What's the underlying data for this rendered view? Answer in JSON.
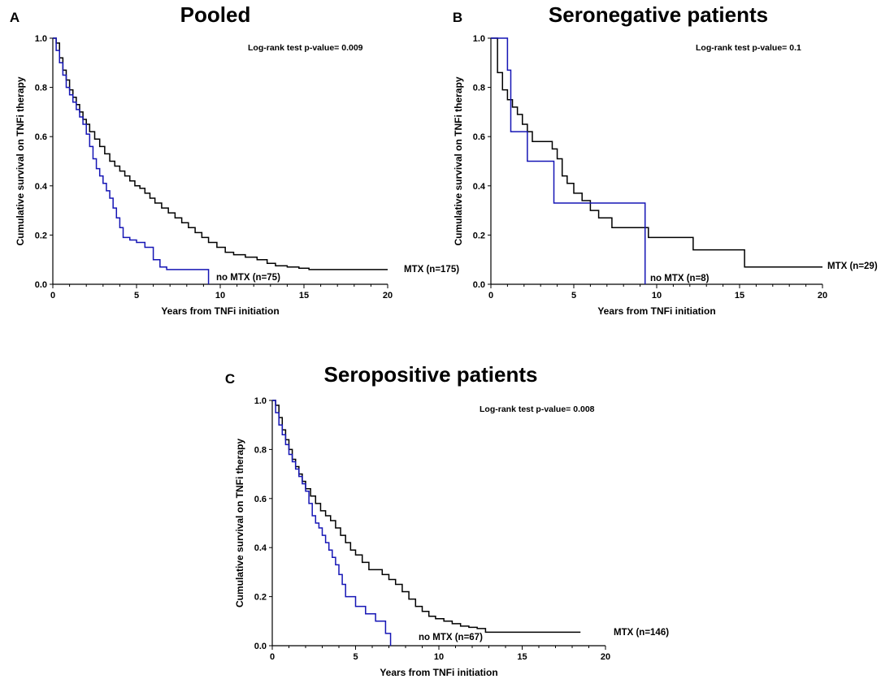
{
  "colors": {
    "axis": "#000000",
    "mtx": "#000000",
    "no_mtx": "#1515b5"
  },
  "chart_data": [
    {
      "panel_label": "A",
      "type": "line",
      "title": "Pooled",
      "xlabel": "Years from TNFi initiation",
      "ylabel": "Cumulative survival on TNFi therapy",
      "xlim": [
        0,
        20
      ],
      "ylim": [
        0,
        1
      ],
      "xticks": [
        "0",
        "5",
        "10",
        "15",
        "20"
      ],
      "yticks": [
        "0.0",
        "0.2",
        "0.4",
        "0.6",
        "0.8",
        "1.0"
      ],
      "annotation": "Log-rank test p-value= 0.009",
      "grid": false,
      "series": [
        {
          "name": "MTX",
          "label": "MTX (n=175)",
          "x": [
            0,
            0.2,
            0.4,
            0.6,
            0.8,
            1.0,
            1.2,
            1.4,
            1.6,
            1.8,
            2.0,
            2.2,
            2.5,
            2.8,
            3.1,
            3.4,
            3.7,
            4.0,
            4.3,
            4.6,
            4.9,
            5.2,
            5.5,
            5.8,
            6.1,
            6.5,
            6.9,
            7.3,
            7.7,
            8.1,
            8.5,
            8.9,
            9.3,
            9.8,
            10.3,
            10.8,
            11.5,
            12.2,
            12.8,
            13.3,
            14.0,
            14.7,
            15.3,
            20.0
          ],
          "y": [
            1.0,
            0.98,
            0.92,
            0.87,
            0.83,
            0.79,
            0.76,
            0.73,
            0.7,
            0.67,
            0.65,
            0.62,
            0.59,
            0.56,
            0.53,
            0.5,
            0.48,
            0.46,
            0.44,
            0.42,
            0.4,
            0.39,
            0.37,
            0.35,
            0.33,
            0.31,
            0.29,
            0.27,
            0.25,
            0.23,
            0.21,
            0.19,
            0.17,
            0.15,
            0.13,
            0.12,
            0.11,
            0.1,
            0.085,
            0.075,
            0.07,
            0.065,
            0.06,
            0.06
          ]
        },
        {
          "name": "no MTX",
          "label": "no MTX (n=75)",
          "x": [
            0,
            0.2,
            0.4,
            0.6,
            0.8,
            1.0,
            1.2,
            1.4,
            1.6,
            1.8,
            2.0,
            2.2,
            2.4,
            2.6,
            2.8,
            3.0,
            3.2,
            3.4,
            3.6,
            3.8,
            4.0,
            4.2,
            4.6,
            5.0,
            5.5,
            6.0,
            6.4,
            6.8,
            7.2,
            9.3
          ],
          "y": [
            1.0,
            0.95,
            0.9,
            0.85,
            0.8,
            0.77,
            0.74,
            0.71,
            0.68,
            0.65,
            0.61,
            0.56,
            0.51,
            0.47,
            0.44,
            0.41,
            0.38,
            0.35,
            0.31,
            0.27,
            0.23,
            0.19,
            0.18,
            0.17,
            0.15,
            0.1,
            0.07,
            0.06,
            0.06,
            0.0
          ]
        }
      ]
    },
    {
      "panel_label": "B",
      "type": "line",
      "title": "Seronegative patients",
      "xlabel": "Years from TNFi initiation",
      "ylabel": "Cumulative survival on TNFi therapy",
      "xlim": [
        0,
        20
      ],
      "ylim": [
        0,
        1
      ],
      "xticks": [
        "0",
        "5",
        "10",
        "15",
        "20"
      ],
      "yticks": [
        "0.0",
        "0.2",
        "0.4",
        "0.6",
        "0.8",
        "1.0"
      ],
      "annotation": "Log-rank test p-value= 0.1",
      "grid": false,
      "series": [
        {
          "name": "MTX",
          "label": "MTX (n=29)",
          "x": [
            0,
            0.4,
            0.7,
            1.0,
            1.3,
            1.6,
            1.9,
            2.2,
            2.5,
            3.7,
            4.0,
            4.3,
            4.6,
            5.0,
            5.5,
            6.0,
            6.5,
            7.3,
            9.5,
            12.2,
            15.3,
            20.0
          ],
          "y": [
            1.0,
            0.86,
            0.79,
            0.75,
            0.72,
            0.69,
            0.65,
            0.62,
            0.58,
            0.55,
            0.51,
            0.44,
            0.41,
            0.37,
            0.34,
            0.3,
            0.27,
            0.23,
            0.19,
            0.14,
            0.07,
            0.07
          ]
        },
        {
          "name": "no MTX",
          "label": "no MTX (n=8)",
          "x": [
            0,
            1.0,
            1.2,
            2.2,
            3.8,
            9.3
          ],
          "y": [
            1.0,
            0.87,
            0.62,
            0.5,
            0.33,
            0.0
          ]
        }
      ]
    },
    {
      "panel_label": "C",
      "type": "line",
      "title": "Seropositive patients",
      "xlabel": "Years from TNFi initiation",
      "ylabel": "Cumulative survival on TNFi therapy",
      "xlim": [
        0,
        20
      ],
      "ylim": [
        0,
        1
      ],
      "xticks": [
        "0",
        "5",
        "10",
        "15",
        "20"
      ],
      "yticks": [
        "0.0",
        "0.2",
        "0.4",
        "0.6",
        "0.8",
        "1.0"
      ],
      "annotation": "Log-rank test p-value= 0.008",
      "grid": false,
      "series": [
        {
          "name": "MTX",
          "label": "MTX (n=146)",
          "x": [
            0,
            0.2,
            0.4,
            0.6,
            0.8,
            1.0,
            1.2,
            1.4,
            1.6,
            1.8,
            2.0,
            2.3,
            2.6,
            2.9,
            3.2,
            3.5,
            3.8,
            4.1,
            4.4,
            4.7,
            5.0,
            5.4,
            5.8,
            6.2,
            6.6,
            7.0,
            7.4,
            7.8,
            8.2,
            8.6,
            9.0,
            9.4,
            9.8,
            10.3,
            10.8,
            11.3,
            11.8,
            12.3,
            12.8,
            18.5
          ],
          "y": [
            1.0,
            0.98,
            0.93,
            0.88,
            0.84,
            0.8,
            0.76,
            0.73,
            0.7,
            0.67,
            0.64,
            0.61,
            0.58,
            0.55,
            0.53,
            0.51,
            0.48,
            0.45,
            0.42,
            0.39,
            0.37,
            0.34,
            0.31,
            0.31,
            0.29,
            0.27,
            0.25,
            0.22,
            0.19,
            0.16,
            0.14,
            0.12,
            0.11,
            0.1,
            0.09,
            0.08,
            0.075,
            0.07,
            0.055,
            0.055
          ]
        },
        {
          "name": "no MTX",
          "label": "no MTX (n=67)",
          "x": [
            0,
            0.2,
            0.4,
            0.6,
            0.8,
            1.0,
            1.2,
            1.4,
            1.6,
            1.8,
            2.0,
            2.2,
            2.4,
            2.6,
            2.8,
            3.0,
            3.2,
            3.4,
            3.6,
            3.8,
            4.0,
            4.2,
            4.4,
            5.0,
            5.6,
            6.2,
            6.8,
            7.1
          ],
          "y": [
            1.0,
            0.95,
            0.9,
            0.86,
            0.82,
            0.78,
            0.75,
            0.72,
            0.69,
            0.66,
            0.63,
            0.58,
            0.53,
            0.5,
            0.48,
            0.45,
            0.42,
            0.39,
            0.36,
            0.33,
            0.29,
            0.25,
            0.2,
            0.16,
            0.13,
            0.1,
            0.05,
            0.0
          ]
        }
      ]
    }
  ]
}
